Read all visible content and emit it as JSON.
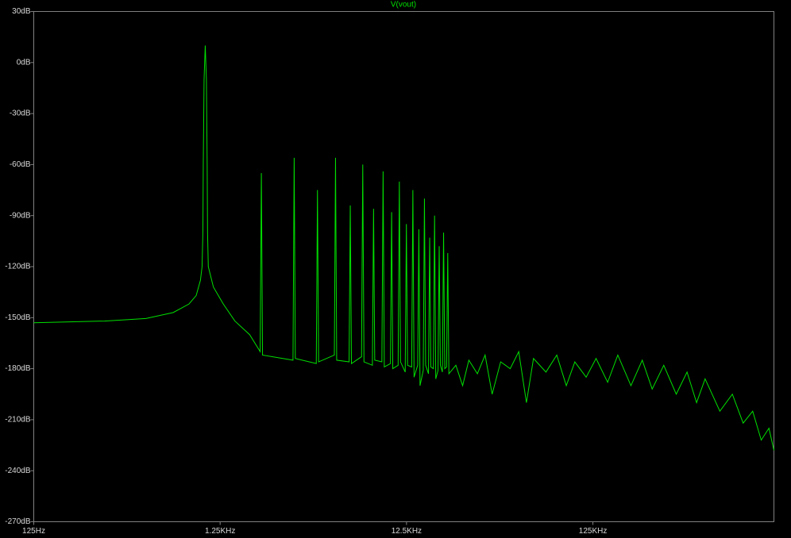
{
  "chart_data": {
    "type": "line",
    "title": "V(vout)",
    "xscale": "log",
    "grid": false,
    "xlim": [
      125,
      1170000
    ],
    "ylim": [
      -270,
      30
    ],
    "xticks": [
      {
        "value": 125,
        "label": "125Hz"
      },
      {
        "value": 1250,
        "label": "1.25KHz"
      },
      {
        "value": 12500,
        "label": "12.5KHz"
      },
      {
        "value": 125000,
        "label": "125KHz"
      }
    ],
    "yticks": [
      {
        "value": 30,
        "label": "30dB"
      },
      {
        "value": 0,
        "label": "0dB"
      },
      {
        "value": -30,
        "label": "-30dB"
      },
      {
        "value": -60,
        "label": "-60dB"
      },
      {
        "value": -90,
        "label": "-90dB"
      },
      {
        "value": -120,
        "label": "-120dB"
      },
      {
        "value": -150,
        "label": "-150dB"
      },
      {
        "value": -180,
        "label": "-180dB"
      },
      {
        "value": -210,
        "label": "-210dB"
      },
      {
        "value": -240,
        "label": "-240dB"
      },
      {
        "value": -270,
        "label": "-270dB"
      }
    ],
    "series": [
      {
        "color": "#00e000",
        "x": [
          125,
          300,
          500,
          700,
          850,
          930,
          980,
          1000,
          1010,
          1015,
          1025,
          1040,
          1055,
          1065,
          1070,
          1080,
          1150,
          1300,
          1500,
          1800,
          2050,
          2080,
          2110,
          3075,
          3120,
          3165,
          4100,
          4160,
          4220,
          5125,
          5200,
          5275,
          6150,
          6240,
          6330,
          7170,
          7280,
          7390,
          8200,
          8320,
          8440,
          9220,
          9360,
          9500,
          10250,
          10400,
          10550,
          11270,
          11440,
          11610,
          12300,
          12480,
          12660,
          13320,
          13520,
          13720,
          14350,
          14560,
          14770,
          15370,
          15600,
          15830,
          16400,
          16640,
          16880,
          17420,
          17680,
          17940,
          18450,
          18720,
          18990,
          19470,
          19760,
          20050,
          20500,
          20800,
          21100,
          23000,
          25000,
          27000,
          30000,
          33000,
          36000,
          40000,
          45000,
          50000,
          55000,
          60000,
          70000,
          80000,
          90000,
          100000,
          115000,
          130000,
          150000,
          170000,
          200000,
          230000,
          260000,
          300000,
          350000,
          400000,
          450000,
          500000,
          600000,
          700000,
          800000,
          900000,
          1000000,
          1100000,
          1170000
        ],
        "values": [
          -153,
          -152,
          -150.5,
          -147,
          -142,
          -137,
          -128,
          -120,
          -100,
          -60,
          -10,
          10,
          -10,
          -60,
          -100,
          -120,
          -132,
          -142,
          -152,
          -160,
          -170,
          -65,
          -172,
          -175,
          -56,
          -174,
          -177,
          -75,
          -176,
          -172,
          -56,
          -175,
          -176,
          -84,
          -177,
          -173,
          -60,
          -176,
          -178,
          -86,
          -175,
          -176,
          -64,
          -179,
          -177,
          -88,
          -180,
          -178,
          -70,
          -176,
          -182,
          -95,
          -178,
          -179,
          -75,
          -185,
          -178,
          -98,
          -190,
          -181,
          -80,
          -178,
          -183,
          -103,
          -179,
          -180,
          -90,
          -186,
          -181,
          -108,
          -178,
          -182,
          -100,
          -180,
          -179,
          -112,
          -183,
          -178,
          -190,
          -175,
          -183,
          -172,
          -195,
          -176,
          -180,
          -170,
          -200,
          -174,
          -182,
          -172,
          -190,
          -176,
          -185,
          -174,
          -188,
          -172,
          -190,
          -175,
          -192,
          -178,
          -195,
          -182,
          -200,
          -186,
          -205,
          -195,
          -212,
          -205,
          -222,
          -215,
          -228
        ]
      }
    ]
  }
}
